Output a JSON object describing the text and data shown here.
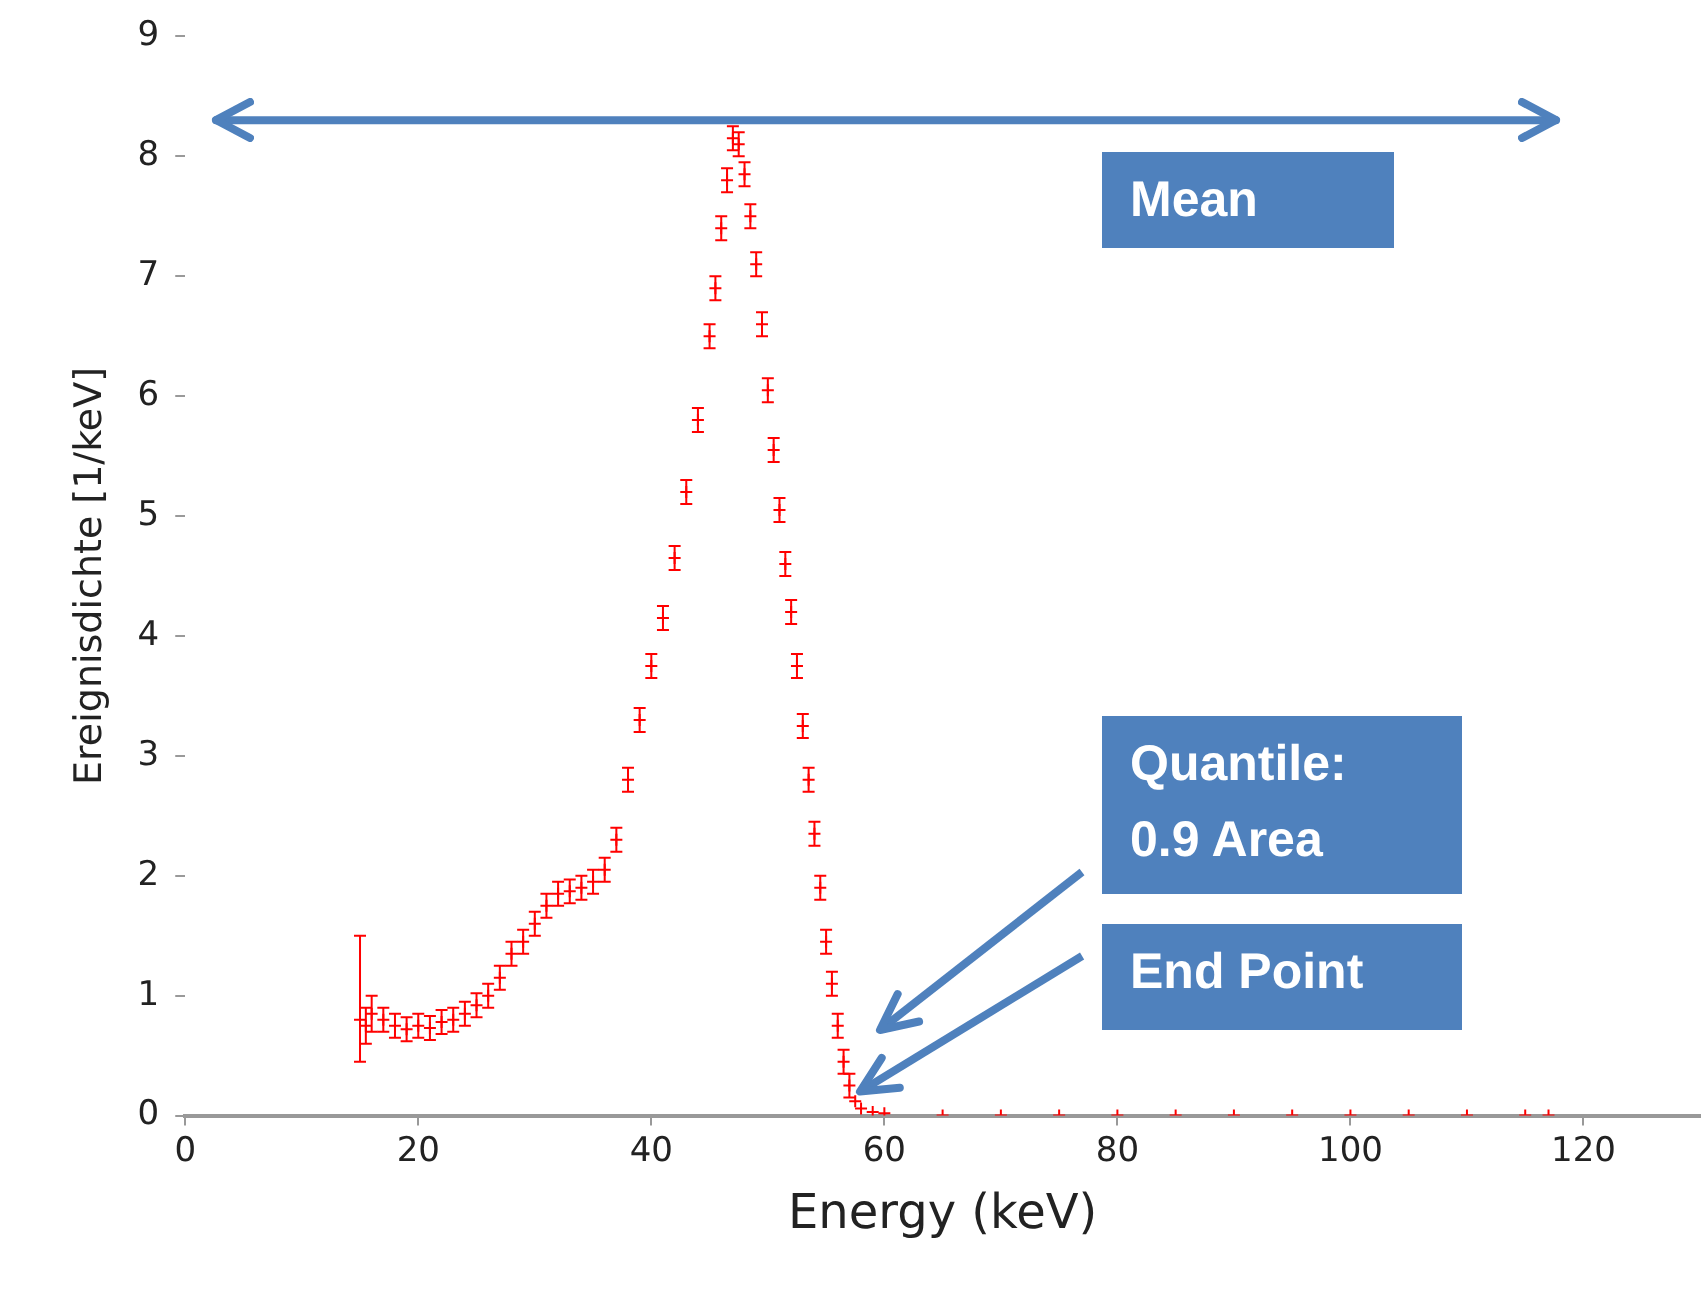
{
  "chart_data": {
    "type": "scatter",
    "xlabel": "Energy (keV)",
    "ylabel": "Ereignisdichte [1/keV]",
    "x": [
      15,
      15.5,
      16,
      17,
      18,
      19,
      20,
      21,
      22,
      23,
      24,
      25,
      26,
      27,
      28,
      29,
      30,
      31,
      32,
      33,
      34,
      35,
      36,
      37,
      38,
      39,
      40,
      41,
      42,
      43,
      44,
      45,
      45.5,
      46,
      46.5,
      47,
      47.5,
      48,
      48.5,
      49,
      49.5,
      50,
      50.5,
      51,
      51.5,
      52,
      52.5,
      53,
      53.5,
      54,
      54.5,
      55,
      55.5,
      56,
      56.5,
      57,
      57.5,
      58,
      59,
      60,
      65,
      70,
      75,
      80,
      85,
      90,
      95,
      100,
      105,
      110,
      115,
      117
    ],
    "series": [
      {
        "color": "#ff0000",
        "values": [
          0.8,
          0.75,
          0.85,
          0.8,
          0.75,
          0.72,
          0.75,
          0.73,
          0.78,
          0.8,
          0.85,
          0.92,
          1.0,
          1.15,
          1.35,
          1.45,
          1.6,
          1.75,
          1.85,
          1.87,
          1.9,
          1.95,
          2.05,
          2.3,
          2.8,
          3.3,
          3.75,
          4.15,
          4.65,
          5.2,
          5.8,
          6.5,
          6.9,
          7.4,
          7.8,
          8.15,
          8.1,
          7.85,
          7.5,
          7.1,
          6.6,
          6.05,
          5.55,
          5.05,
          4.6,
          4.2,
          3.75,
          3.25,
          2.8,
          2.35,
          1.9,
          1.45,
          1.1,
          0.75,
          0.45,
          0.25,
          0.12,
          0.06,
          0.03,
          0.02,
          0,
          0,
          0,
          0,
          0,
          0,
          0,
          0,
          0,
          0,
          0,
          0
        ],
        "errors": [
          [
            0.45,
            1.5
          ],
          0.15,
          0.15,
          0.1,
          0.1,
          0.1,
          0.1,
          0.1,
          0.1,
          0.1,
          0.1,
          0.1,
          0.1,
          0.1,
          0.1,
          0.1,
          0.1,
          0.1,
          0.1,
          0.1,
          0.1,
          0.1,
          0.1,
          0.1,
          0.1,
          0.1,
          0.1,
          0.1,
          0.1,
          0.1,
          0.1,
          0.1,
          0.1,
          0.1,
          0.1,
          0.1,
          0.1,
          0.1,
          0.1,
          0.1,
          0.1,
          0.1,
          0.1,
          0.1,
          0.1,
          0.1,
          0.1,
          0.1,
          0.1,
          0.1,
          0.1,
          0.1,
          0.1,
          0.1,
          0.1,
          0.1,
          null,
          null,
          null,
          null,
          null,
          null,
          null,
          null,
          null,
          null,
          null,
          null,
          null,
          null,
          null,
          null
        ]
      }
    ],
    "xlim": [
      0,
      130
    ],
    "xticks": [
      0,
      20,
      40,
      60,
      80,
      100,
      120
    ],
    "ylim": [
      0,
      9
    ],
    "yticks": [
      0,
      1,
      2,
      3,
      4,
      5,
      6,
      7,
      8,
      9
    ],
    "grid": false,
    "legend": false,
    "marker": "cross",
    "ref_lines": [
      {
        "axis": "y",
        "value": 8.3,
        "label": "Mean",
        "color": "#4f81bd"
      }
    ],
    "annotations": [
      "Quantile:\n0.9 Area",
      {
        "text": "End Point",
        "x": 57.9,
        "y": 0.2
      }
    ]
  }
}
